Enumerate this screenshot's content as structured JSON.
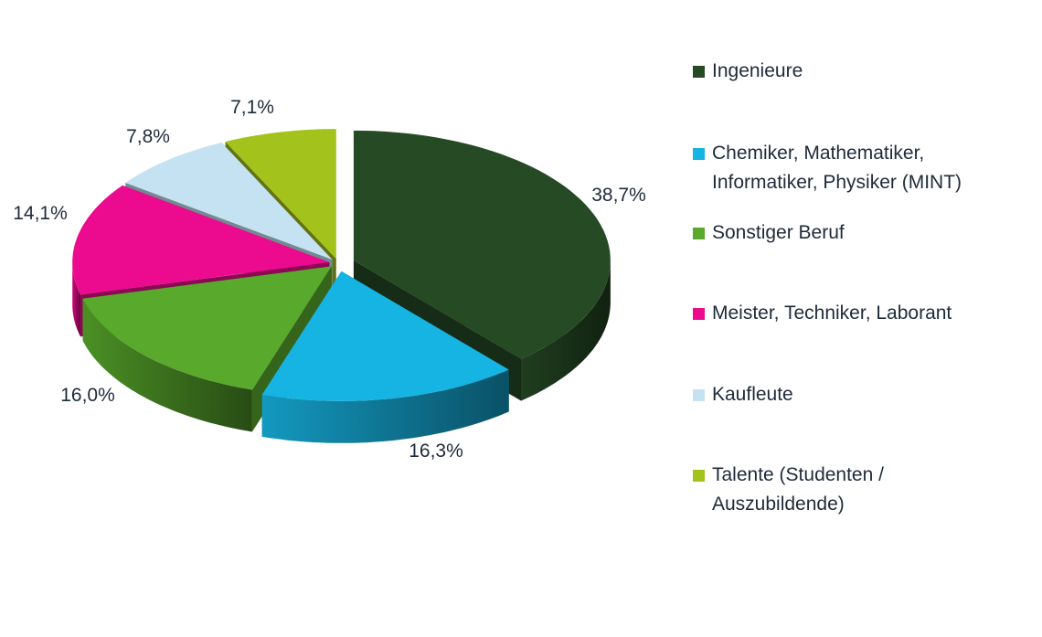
{
  "chart_data": {
    "type": "pie",
    "title": "",
    "slices": [
      {
        "label": "Ingenieure",
        "value": 38.7,
        "display": "38,7%",
        "color": "#264a24"
      },
      {
        "label": "Chemiker, Mathematiker, Informatiker, Physiker (MINT)",
        "line1": "Chemiker, Mathematiker,",
        "line2": "Informatiker, Physiker (MINT)",
        "value": 16.3,
        "display": "16,3%",
        "color": "#16b4e2"
      },
      {
        "label": "Sonstiger Beruf",
        "value": 16.0,
        "display": "16,0%",
        "color": "#58a92c"
      },
      {
        "label": "Meister, Techniker, Laborant",
        "value": 14.1,
        "display": "14,1%",
        "color": "#ec0b8e"
      },
      {
        "label": "Kaufleute",
        "value": 7.8,
        "display": "7,8%",
        "color": "#c4e2f2"
      },
      {
        "label": "Talente (Studenten / Auszubildende)",
        "line1": "Talente (Studenten /",
        "line2": "Auszubildende)",
        "value": 7.1,
        "display": "7,1%",
        "color": "#a3c21b"
      }
    ],
    "legend_position": "right",
    "style": "3d-exploded"
  }
}
